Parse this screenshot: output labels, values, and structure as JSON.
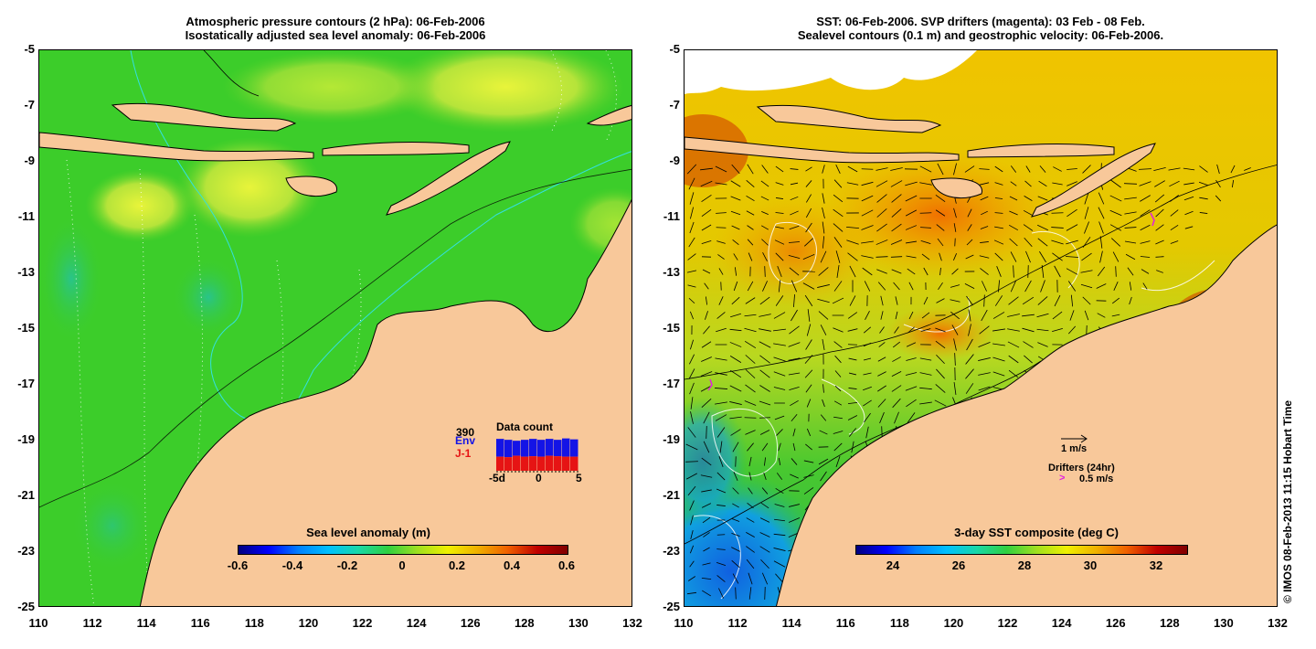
{
  "left_panel": {
    "title_line1": "Atmospheric pressure contours (2 hPa): 06-Feb-2006",
    "title_line2": "Isostatically adjusted sea level anomaly: 06-Feb-2006",
    "colorbar_title": "Sea level anomaly (m)",
    "colorbar_ticks": [
      "-0.6",
      "-0.4",
      "-0.2",
      "0",
      "0.2",
      "0.4",
      "0.6"
    ],
    "data_count": {
      "label": "Data count",
      "max_value": "390",
      "env_label": "Env",
      "j1_label": "J-1",
      "axis_ticks": [
        "-5d",
        "0",
        "5"
      ]
    }
  },
  "right_panel": {
    "title_line1": "SST: 06-Feb-2006. SVP drifters (magenta): 03 Feb - 08 Feb.",
    "title_line2": "Sealevel contours (0.1 m) and geostrophic velocity: 06-Feb-2006.",
    "colorbar_title": "3-day SST composite (deg C)",
    "colorbar_ticks": [
      "24",
      "26",
      "28",
      "30",
      "32"
    ],
    "velocity_legend": "1 m/s",
    "drifters_label": "Drifters (24hr)",
    "drifters_speed": "0.5 m/s"
  },
  "axes": {
    "y_ticks": [
      "-5",
      "-7",
      "-9",
      "-11",
      "-13",
      "-15",
      "-17",
      "-19",
      "-21",
      "-23",
      "-25"
    ],
    "x_ticks": [
      "110",
      "112",
      "114",
      "116",
      "118",
      "120",
      "122",
      "124",
      "126",
      "128",
      "130",
      "132"
    ]
  },
  "credit": "© IMOS 08-Feb-2013 11:15 Hobart Time",
  "colors": {
    "land": "#f8c89a",
    "ocean_green": "#3ccd2a",
    "sst_orange": "#f4a000",
    "sst_blue": "#1a7fe0",
    "env_bar": "#1414e6",
    "j1_bar": "#e61414",
    "drifter": "#e020e0"
  },
  "chart_data": {
    "type": "bar",
    "categories": [
      "-5d",
      "",
      "",
      "",
      "",
      "0",
      "",
      "",
      "",
      "5"
    ],
    "series": [
      {
        "name": "Env",
        "values": [
          340,
          330,
          320,
          330,
          340,
          330,
          340,
          330,
          345,
          335
        ]
      },
      {
        "name": "J-1",
        "values": [
          150,
          145,
          160,
          150,
          155,
          150,
          160,
          155,
          150,
          150
        ]
      }
    ],
    "ylim": [
      0,
      390
    ]
  }
}
